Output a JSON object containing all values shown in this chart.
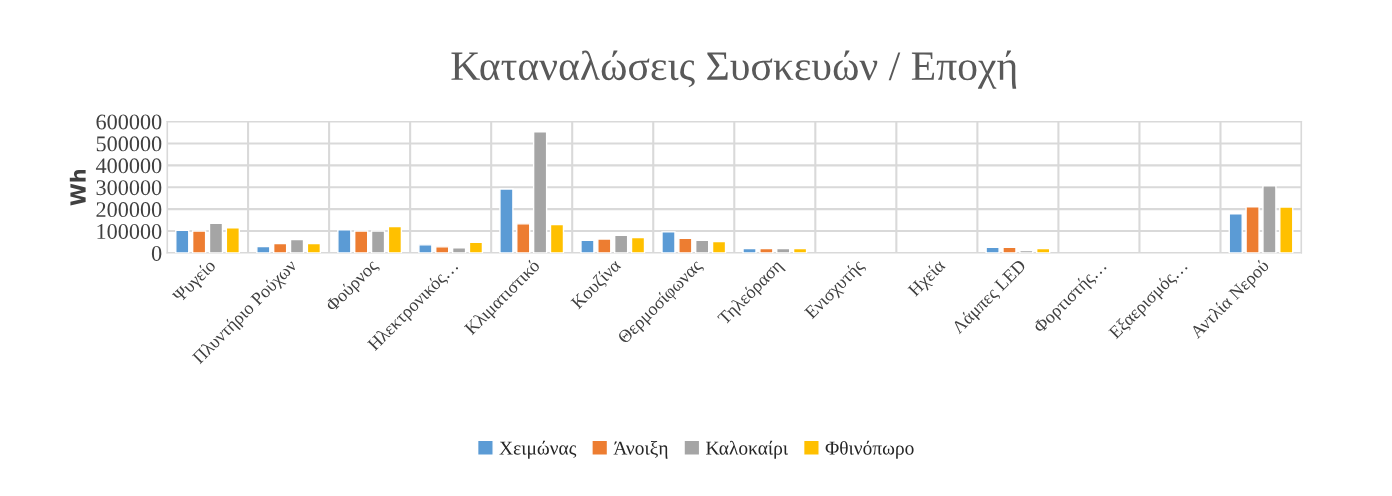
{
  "chart_data": {
    "type": "bar",
    "title": "Καταναλώσεις Συσκευών / Εποχή",
    "ylabel": "Wh",
    "categories": [
      "Ψυγείο",
      "Πλυντήριο Ρούχων",
      "Φούρνος",
      "Ηλεκτρονικός…",
      "Κλιματιστικό",
      "Κουζίνα",
      "Θερμοσίφωνας",
      "Τηλεόραση",
      "Ενισχυτής",
      "Ηχεία",
      "Λάμπες LED",
      "Φορτιστής…",
      "Εξαερισμός…",
      "Αντλία Νερού"
    ],
    "series": [
      {
        "name": "Χειμώνας",
        "color": "#5b9bd5",
        "values": [
          103000,
          29000,
          106000,
          37000,
          292000,
          58000,
          96000,
          20000,
          null,
          null,
          26000,
          null,
          null,
          179000
        ]
      },
      {
        "name": "Άνοιξη",
        "color": "#ed7d31",
        "values": [
          100000,
          43000,
          100000,
          28000,
          133000,
          64000,
          67000,
          20000,
          null,
          null,
          26000,
          null,
          null,
          211000
        ]
      },
      {
        "name": "Καλοκαίρι",
        "color": "#a5a5a5",
        "values": [
          135000,
          61000,
          100000,
          23000,
          553000,
          81000,
          58000,
          20000,
          null,
          null,
          11000,
          null,
          null,
          306000
        ]
      },
      {
        "name": "Φθινόπωρο",
        "color": "#ffc000",
        "values": [
          115000,
          43000,
          120000,
          49000,
          130000,
          70000,
          52000,
          20000,
          null,
          null,
          20000,
          null,
          null,
          210000
        ]
      }
    ],
    "ylim": [
      0,
      600000
    ],
    "yticks": [
      0,
      100000,
      200000,
      300000,
      400000,
      500000,
      600000
    ],
    "grid": true,
    "legend": "bottom"
  }
}
